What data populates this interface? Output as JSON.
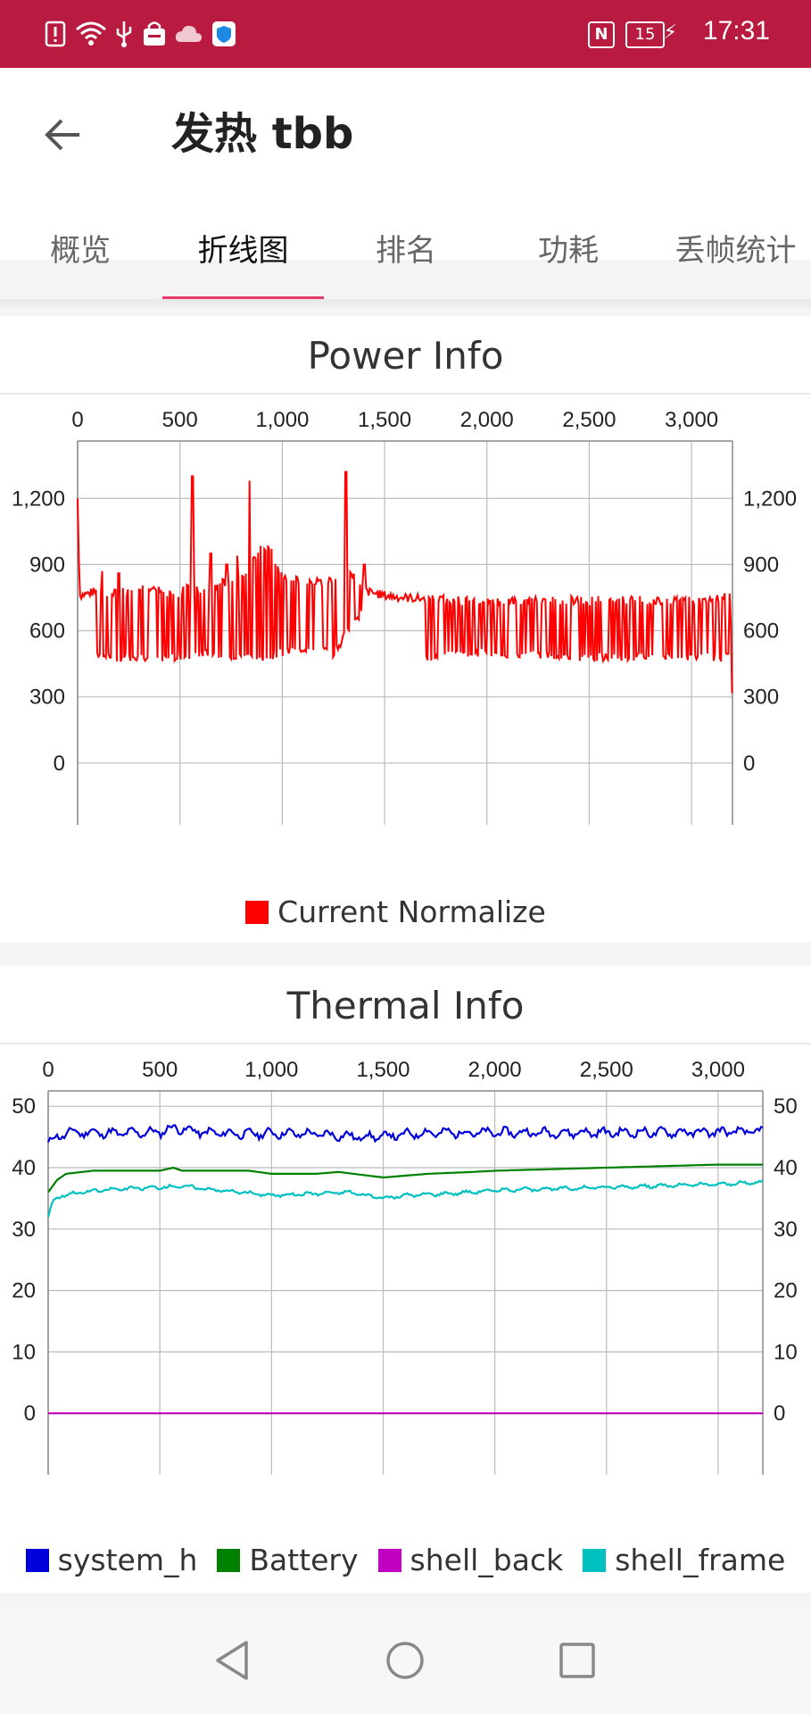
{
  "status_bar": {
    "time": "17:31",
    "battery_level": "15",
    "nfc_label": "N",
    "icons": [
      "alert-icon",
      "wifi-icon",
      "usb-icon",
      "shopping-bag-icon",
      "cloud-icon",
      "shield-icon"
    ]
  },
  "app_bar": {
    "title": "发热 tbb",
    "back_icon": "arrow-left-icon"
  },
  "tabs": [
    {
      "label": "概览",
      "active": false
    },
    {
      "label": "折线图",
      "active": true
    },
    {
      "label": "排名",
      "active": false
    },
    {
      "label": "功耗",
      "active": false
    },
    {
      "label": "丢帧统计",
      "active": false
    }
  ],
  "colors": {
    "status_bar": "#b81a40",
    "tab_indicator": "#e9396a",
    "power_series": "#ff0000",
    "system_h": "#0000dd",
    "battery": "#008000",
    "shell_back": "#c000c0",
    "shell_frame": "#00c0c0"
  },
  "chart_data": [
    {
      "type": "line",
      "title": "Power Info",
      "x_ticks": [
        "0",
        "500",
        "1,000",
        "1,500",
        "2,000",
        "2,500",
        "3,000"
      ],
      "x_tick_values": [
        0,
        500,
        1000,
        1500,
        2000,
        2500,
        3000
      ],
      "xlim": [
        0,
        3200
      ],
      "y_ticks": [
        "0",
        "300",
        "600",
        "900",
        "1,200"
      ],
      "y_tick_values": [
        0,
        300,
        600,
        900,
        1200
      ],
      "ylim": [
        -280,
        1460
      ],
      "x_axis_position": "top",
      "y_axes": "left and right",
      "grid": true,
      "legend_position": "bottom-center",
      "series": [
        {
          "name": "Current Normalize",
          "color": "#ff0000",
          "baseline_points": [
            [
              0,
              1200
            ],
            [
              10,
              760
            ],
            [
              100,
              780
            ],
            [
              200,
              770
            ],
            [
              300,
              790
            ],
            [
              400,
              780
            ],
            [
              500,
              770
            ],
            [
              560,
              830
            ],
            [
              600,
              760
            ],
            [
              700,
              820
            ],
            [
              800,
              830
            ],
            [
              850,
              920
            ],
            [
              900,
              980
            ],
            [
              950,
              960
            ],
            [
              1000,
              840
            ],
            [
              1100,
              830
            ],
            [
              1200,
              820
            ],
            [
              1270,
              840
            ],
            [
              1300,
              880
            ],
            [
              1350,
              840
            ],
            [
              1400,
              780
            ],
            [
              1500,
              760
            ],
            [
              1600,
              750
            ],
            [
              1700,
              745
            ],
            [
              1800,
              740
            ],
            [
              1900,
              735
            ],
            [
              2000,
              730
            ],
            [
              2100,
              730
            ],
            [
              2200,
              735
            ],
            [
              2300,
              740
            ],
            [
              2400,
              740
            ],
            [
              2500,
              735
            ],
            [
              2600,
              740
            ],
            [
              2700,
              738
            ],
            [
              2800,
              736
            ],
            [
              2900,
              740
            ],
            [
              3000,
              738
            ],
            [
              3100,
              740
            ],
            [
              3190,
              760
            ],
            [
              3200,
              190
            ]
          ],
          "low_points": [
            [
              100,
              480
            ],
            [
              500,
              480
            ],
            [
              600,
              500
            ],
            [
              900,
              480
            ],
            [
              1100,
              520
            ],
            [
              1250,
              500
            ],
            [
              1400,
              700
            ],
            [
              1700,
              480
            ],
            [
              2000,
              500
            ],
            [
              2500,
              480
            ],
            [
              3000,
              480
            ],
            [
              3190,
              480
            ]
          ],
          "spikes": [
            [
              560,
              1300
            ],
            [
              840,
              1280
            ],
            [
              1310,
              1320
            ],
            [
              730,
              900
            ],
            [
              780,
              940
            ],
            [
              1400,
              900
            ],
            [
              120,
              870
            ],
            [
              200,
              860
            ],
            [
              650,
              950
            ]
          ]
        }
      ]
    },
    {
      "type": "line",
      "title": "Thermal Info",
      "x_ticks": [
        "0",
        "500",
        "1,000",
        "1,500",
        "2,000",
        "2,500",
        "3,000"
      ],
      "x_tick_values": [
        0,
        500,
        1000,
        1500,
        2000,
        2500,
        3000
      ],
      "xlim": [
        0,
        3200
      ],
      "y_ticks": [
        "0",
        "10",
        "20",
        "30",
        "40",
        "50"
      ],
      "y_tick_values": [
        0,
        10,
        20,
        30,
        40,
        50
      ],
      "ylim": [
        -10,
        52.5
      ],
      "x_axis_position": "top",
      "y_axes": "left and right",
      "grid": true,
      "legend_position": "bottom-center",
      "series": [
        {
          "name": "system_h",
          "color": "#0000dd",
          "points": [
            [
              0,
              44
            ],
            [
              40,
              45
            ],
            [
              100,
              45.8
            ],
            [
              300,
              45.6
            ],
            [
              500,
              45.8
            ],
            [
              560,
              46.5
            ],
            [
              700,
              45.7
            ],
            [
              900,
              45.5
            ],
            [
              1000,
              45.6
            ],
            [
              1200,
              45.5
            ],
            [
              1400,
              45
            ],
            [
              1500,
              45.1
            ],
            [
              1700,
              45.7
            ],
            [
              2000,
              45.7
            ],
            [
              2500,
              45.7
            ],
            [
              3000,
              45.8
            ],
            [
              3200,
              45.9
            ]
          ]
        },
        {
          "name": "Battery",
          "color": "#008000",
          "points": [
            [
              0,
              36
            ],
            [
              20,
              37
            ],
            [
              40,
              38
            ],
            [
              80,
              39
            ],
            [
              200,
              39.5
            ],
            [
              500,
              39.5
            ],
            [
              560,
              40
            ],
            [
              600,
              39.5
            ],
            [
              900,
              39.5
            ],
            [
              1000,
              39
            ],
            [
              1200,
              39
            ],
            [
              1300,
              39.3
            ],
            [
              1500,
              38.4
            ],
            [
              1700,
              39
            ],
            [
              1900,
              39.3
            ],
            [
              2000,
              39.5
            ],
            [
              2500,
              40
            ],
            [
              2800,
              40.3
            ],
            [
              3000,
              40.5
            ],
            [
              3200,
              40.5
            ]
          ]
        },
        {
          "name": "shell_back",
          "color": "#c000c0",
          "points": [
            [
              0,
              0
            ],
            [
              3200,
              0
            ]
          ]
        },
        {
          "name": "shell_frame",
          "color": "#00c0c0",
          "points": [
            [
              0,
              32
            ],
            [
              20,
              34.5
            ],
            [
              60,
              35.5
            ],
            [
              150,
              36
            ],
            [
              300,
              36.5
            ],
            [
              500,
              36.8
            ],
            [
              600,
              37
            ],
            [
              800,
              36.2
            ],
            [
              1000,
              35.5
            ],
            [
              1200,
              35.8
            ],
            [
              1350,
              36
            ],
            [
              1500,
              35
            ],
            [
              1600,
              35.5
            ],
            [
              1800,
              35.8
            ],
            [
              2000,
              36.3
            ],
            [
              2500,
              36.8
            ],
            [
              3000,
              37.3
            ],
            [
              3200,
              37.6
            ]
          ]
        }
      ]
    }
  ],
  "nav": {
    "back_icon": "triangle-back-icon",
    "home_icon": "circle-home-icon",
    "recents_icon": "square-recents-icon"
  }
}
